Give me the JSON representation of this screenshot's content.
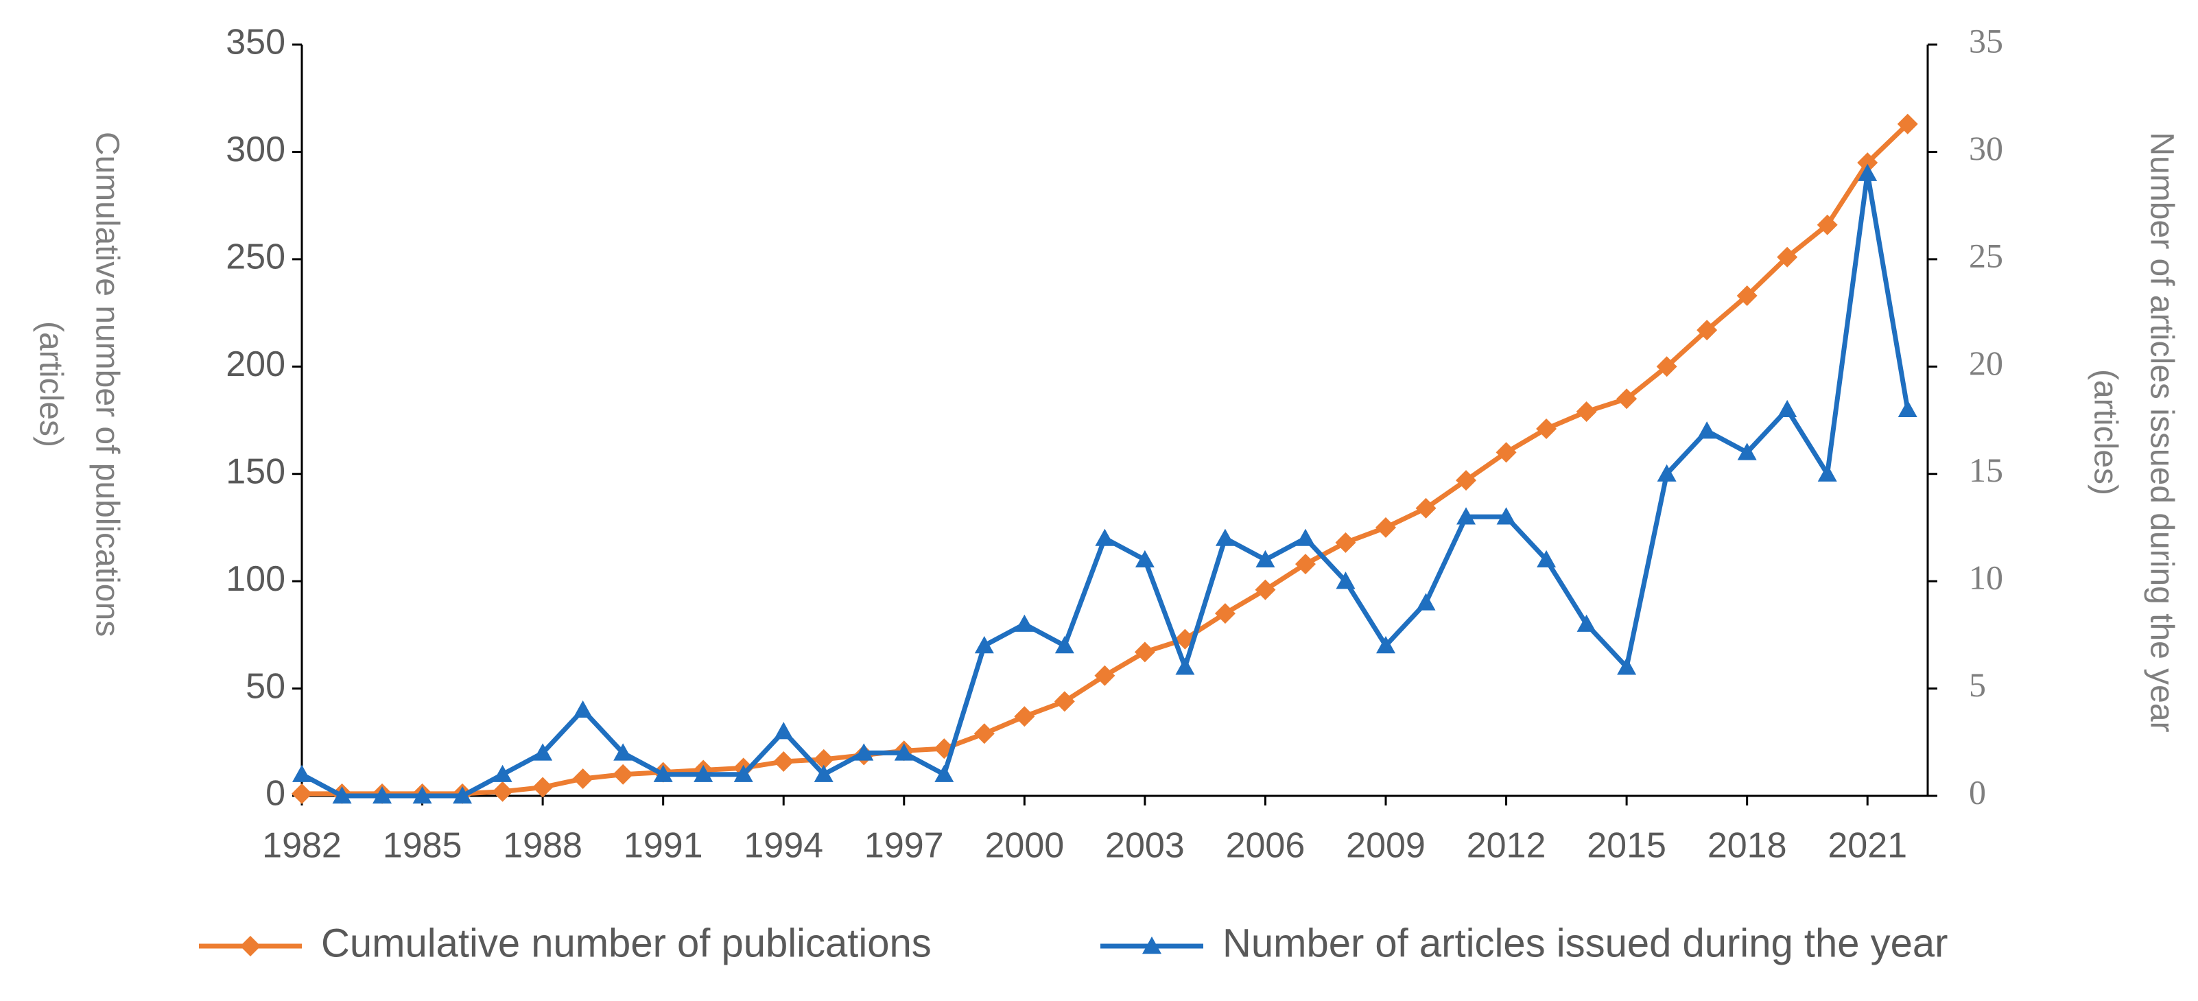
{
  "chart_data": {
    "type": "line",
    "x": [
      1982,
      1983,
      1984,
      1985,
      1986,
      1987,
      1988,
      1989,
      1990,
      1991,
      1992,
      1993,
      1994,
      1995,
      1996,
      1997,
      1998,
      1999,
      2000,
      2001,
      2002,
      2003,
      2004,
      2005,
      2006,
      2007,
      2008,
      2009,
      2010,
      2011,
      2012,
      2013,
      2014,
      2015,
      2016,
      2017,
      2018,
      2019,
      2020,
      2021,
      2022
    ],
    "xlim": [
      1982,
      2022.5
    ],
    "xticks": [
      1982,
      1985,
      1988,
      1991,
      1994,
      1997,
      2000,
      2003,
      2006,
      2009,
      2012,
      2015,
      2018,
      2021
    ],
    "ylim": [
      0,
      350
    ],
    "yticks": [
      0,
      50,
      100,
      150,
      200,
      250,
      300,
      350
    ],
    "y2lim": [
      0,
      35
    ],
    "y2ticks": [
      0,
      5,
      10,
      15,
      20,
      25,
      30,
      35
    ],
    "y_label": [
      "Cumulative number of publications",
      "(articles)"
    ],
    "y2_label": [
      "Number of articles issued during the year",
      "(articles)"
    ],
    "legend": "bottom",
    "series": [
      {
        "name": "Cumulative number of publications",
        "color": "#ed7d31",
        "marker": "diamond",
        "values": [
          1,
          1,
          1,
          1,
          1,
          2,
          4,
          8,
          10,
          11,
          12,
          13,
          16,
          17,
          19,
          21,
          22,
          29,
          37,
          44,
          56,
          67,
          73,
          85,
          96,
          108,
          118,
          125,
          134,
          147,
          160,
          171,
          179,
          185,
          200,
          217,
          233,
          251,
          266,
          295,
          313
        ]
      },
      {
        "name": "Number of articles issued during the year",
        "color": "#1f6fc0",
        "marker": "triangle",
        "axis": "y2",
        "values": [
          1,
          0,
          0,
          0,
          0,
          1,
          2,
          4,
          2,
          1,
          1,
          1,
          3,
          1,
          2,
          2,
          1,
          7,
          8,
          7,
          12,
          11,
          6,
          12,
          11,
          12,
          10,
          7,
          9,
          13,
          13,
          11,
          8,
          6,
          15,
          17,
          16,
          18,
          15,
          29,
          18
        ]
      }
    ]
  }
}
